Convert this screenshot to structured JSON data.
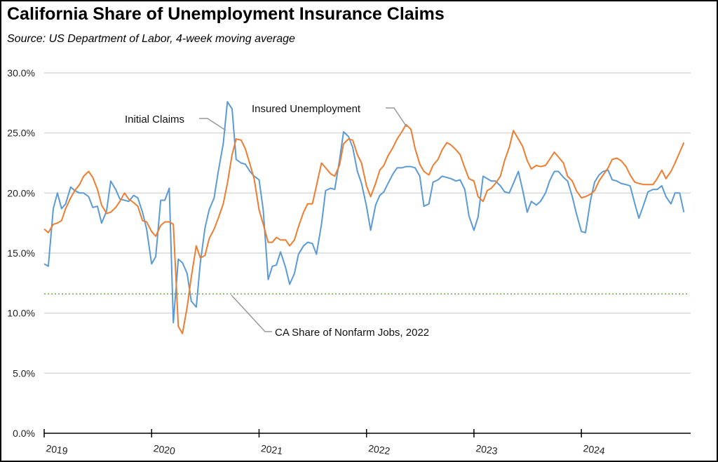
{
  "title": "California Share of Unemployment Insurance Claims",
  "subtitle": "Source:  US Department of Labor, 4-week moving average",
  "chart_data": {
    "type": "line",
    "title": "California Share of Unemployment Insurance Claims",
    "subtitle": "Source:  US Department of Labor, 4-week moving average",
    "xlabel": "",
    "ylabel": "",
    "ylim": [
      0,
      30
    ],
    "xlim": [
      "2019-01-01",
      "2024-12-31"
    ],
    "y_ticks": [
      "0.0%",
      "5.0%",
      "10.0%",
      "15.0%",
      "20.0%",
      "25.0%",
      "30.0%"
    ],
    "x_ticks": [
      "2019",
      "2020",
      "2021",
      "2022",
      "2023",
      "2024"
    ],
    "grid": "horizontal",
    "legend": "none (inline labels)",
    "x": [
      "2019-01-01",
      "2019-01-15",
      "2019-02-01",
      "2019-02-15",
      "2019-03-01",
      "2019-03-15",
      "2019-04-01",
      "2019-04-15",
      "2019-05-01",
      "2019-05-15",
      "2019-06-01",
      "2019-06-15",
      "2019-07-01",
      "2019-07-15",
      "2019-08-01",
      "2019-08-15",
      "2019-09-01",
      "2019-09-15",
      "2019-10-01",
      "2019-10-15",
      "2019-11-01",
      "2019-11-15",
      "2019-12-01",
      "2019-12-15",
      "2020-01-01",
      "2020-01-15",
      "2020-02-01",
      "2020-02-15",
      "2020-03-01",
      "2020-03-15",
      "2020-04-01",
      "2020-04-15",
      "2020-05-01",
      "2020-05-15",
      "2020-06-01",
      "2020-06-15",
      "2020-07-01",
      "2020-07-15",
      "2020-08-01",
      "2020-08-15",
      "2020-09-01",
      "2020-09-15",
      "2020-10-01",
      "2020-10-15",
      "2020-11-01",
      "2020-11-15",
      "2020-12-01",
      "2020-12-15",
      "2021-01-01",
      "2021-01-15",
      "2021-02-01",
      "2021-02-15",
      "2021-03-01",
      "2021-03-15",
      "2021-04-01",
      "2021-04-15",
      "2021-05-01",
      "2021-05-15",
      "2021-06-01",
      "2021-06-15",
      "2021-07-01",
      "2021-07-15",
      "2021-08-01",
      "2021-08-15",
      "2021-09-01",
      "2021-09-15",
      "2021-10-01",
      "2021-10-15",
      "2021-11-01",
      "2021-11-15",
      "2021-12-01",
      "2021-12-15",
      "2022-01-01",
      "2022-01-15",
      "2022-02-01",
      "2022-02-15",
      "2022-03-01",
      "2022-03-15",
      "2022-04-01",
      "2022-04-15",
      "2022-05-01",
      "2022-05-15",
      "2022-06-01",
      "2022-06-15",
      "2022-07-01",
      "2022-07-15",
      "2022-08-01",
      "2022-08-15",
      "2022-09-01",
      "2022-09-15",
      "2022-10-01",
      "2022-10-15",
      "2022-11-01",
      "2022-11-15",
      "2022-12-01",
      "2022-12-15",
      "2023-01-01",
      "2023-01-15",
      "2023-02-01",
      "2023-02-15",
      "2023-03-01",
      "2023-03-15",
      "2023-04-01",
      "2023-04-15",
      "2023-05-01",
      "2023-05-15",
      "2023-06-01",
      "2023-06-15",
      "2023-07-01",
      "2023-07-15",
      "2023-08-01",
      "2023-08-15",
      "2023-09-01",
      "2023-09-15",
      "2023-10-01",
      "2023-10-15",
      "2023-11-01",
      "2023-11-15",
      "2023-12-01",
      "2023-12-15",
      "2024-01-01",
      "2024-01-15",
      "2024-02-01",
      "2024-02-15",
      "2024-03-01",
      "2024-03-15",
      "2024-04-01",
      "2024-04-15",
      "2024-05-01",
      "2024-05-15",
      "2024-06-01",
      "2024-06-15",
      "2024-07-01",
      "2024-07-15",
      "2024-08-01",
      "2024-08-15",
      "2024-09-01",
      "2024-09-15",
      "2024-10-01",
      "2024-10-15",
      "2024-11-01",
      "2024-11-15",
      "2024-12-01",
      "2024-12-15"
    ],
    "series": [
      {
        "name": "Initial Claims",
        "color": "#5B9BD5",
        "values": [
          14.1,
          13.9,
          18.7,
          20.0,
          18.7,
          19.1,
          20.5,
          20.2,
          20.0,
          20.0,
          19.7,
          18.8,
          18.9,
          17.5,
          18.5,
          21.0,
          20.3,
          19.5,
          19.4,
          19.3,
          19.8,
          19.6,
          18.4,
          17.0,
          14.1,
          14.7,
          19.4,
          19.4,
          20.4,
          9.2,
          14.5,
          14.2,
          13.3,
          11.0,
          10.5,
          14.2,
          17.1,
          18.6,
          19.6,
          21.8,
          24.1,
          27.6,
          27.0,
          22.8,
          22.5,
          22.4,
          21.8,
          21.4,
          21.1,
          18.6,
          12.8,
          13.9,
          14.0,
          15.1,
          13.8,
          12.4,
          13.3,
          14.9,
          15.6,
          15.9,
          15.8,
          14.9,
          17.4,
          20.2,
          20.4,
          20.3,
          22.7,
          25.1,
          24.7,
          23.8,
          21.8,
          20.8,
          18.9,
          16.9,
          19.0,
          19.8,
          20.1,
          20.8,
          21.6,
          22.1,
          22.1,
          22.2,
          22.2,
          22.1,
          21.4,
          18.9,
          19.1,
          20.9,
          21.1,
          21.4,
          21.3,
          21.2,
          21.0,
          21.1,
          20.3,
          18.1,
          16.9,
          18.0,
          21.4,
          21.2,
          21.0,
          21.0,
          20.6,
          20.1,
          20.0,
          20.8,
          21.8,
          20.3,
          18.4,
          19.3,
          19.0,
          19.3,
          20.0,
          21.0,
          21.8,
          21.8,
          21.3,
          21.0,
          19.7,
          18.3,
          16.8,
          16.7,
          19.4,
          20.9,
          21.5,
          21.8,
          21.9,
          21.1,
          21.0,
          20.8,
          20.7,
          20.6,
          19.1,
          17.9,
          19.1,
          20.1,
          20.3,
          20.3,
          20.6,
          19.7,
          19.1,
          20.0,
          20.0,
          18.4
        ]
      },
      {
        "name": "Insured Unemployment",
        "color": "#ED7D31",
        "values": [
          17.0,
          16.7,
          17.4,
          17.5,
          17.7,
          18.7,
          19.6,
          20.2,
          20.7,
          21.4,
          21.8,
          21.3,
          20.3,
          19.0,
          18.3,
          18.4,
          18.8,
          19.3,
          20.0,
          19.5,
          19.2,
          18.9,
          17.7,
          17.6,
          16.8,
          16.4,
          17.3,
          17.6,
          17.6,
          17.4,
          8.9,
          8.3,
          10.5,
          13.0,
          15.6,
          14.6,
          14.8,
          16.2,
          17.0,
          17.9,
          19.1,
          20.8,
          23.2,
          24.5,
          24.4,
          23.7,
          22.4,
          21.2,
          18.6,
          17.4,
          15.9,
          15.9,
          16.3,
          16.1,
          16.1,
          15.6,
          16.1,
          17.2,
          18.4,
          19.1,
          19.1,
          20.6,
          22.5,
          22.1,
          21.6,
          21.4,
          22.3,
          24.1,
          24.5,
          24.4,
          23.2,
          22.5,
          20.6,
          19.7,
          20.8,
          21.9,
          22.3,
          23.1,
          23.8,
          24.5,
          25.1,
          25.7,
          25.3,
          23.7,
          22.4,
          21.8,
          21.5,
          22.3,
          22.8,
          23.6,
          24.2,
          24.0,
          23.6,
          23.2,
          22.1,
          21.2,
          21.0,
          19.7,
          19.3,
          20.2,
          20.4,
          20.8,
          21.4,
          22.7,
          23.8,
          25.2,
          24.5,
          23.9,
          22.7,
          22.0,
          22.3,
          22.2,
          22.3,
          22.8,
          23.4,
          23.0,
          22.5,
          21.4,
          21.0,
          20.2,
          19.6,
          19.7,
          19.9,
          20.2,
          21.0,
          21.5,
          22.1,
          22.8,
          22.9,
          22.7,
          22.2,
          21.5,
          20.9,
          20.8,
          20.7,
          20.7,
          20.7,
          21.2,
          21.9,
          21.2,
          21.8,
          22.5,
          23.4,
          24.2
        ]
      }
    ],
    "reference_line": {
      "label": "CA Share of Nonfarm Jobs, 2022",
      "value": 11.6,
      "color": "#70AD47",
      "style": "dotted"
    },
    "annotations": [
      "Initial Claims",
      "Insured Unemployment",
      "CA Share of Nonfarm Jobs, 2022"
    ]
  }
}
